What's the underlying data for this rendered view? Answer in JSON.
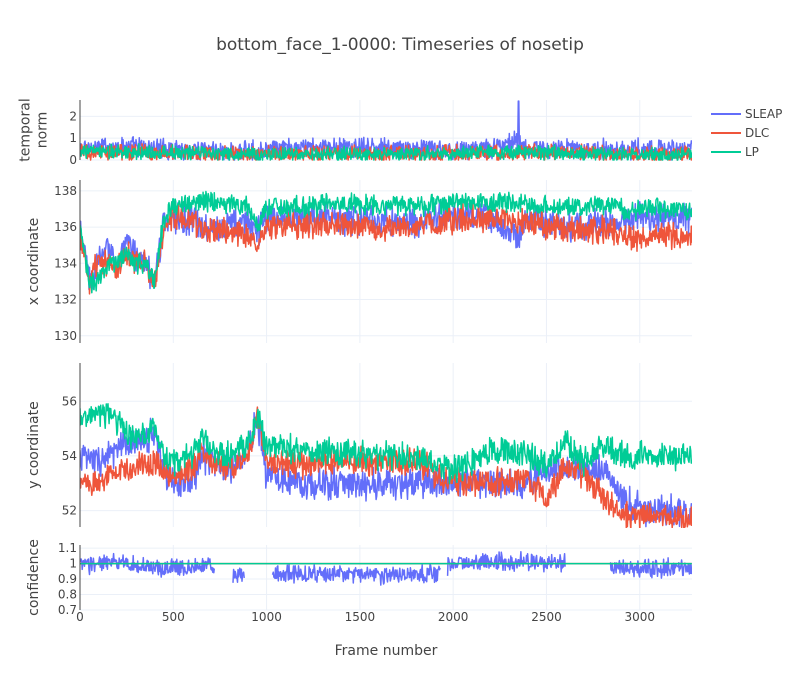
{
  "chart_data": {
    "type": "line",
    "title": "bottom_face_1-0000: Timeseries of nosetip",
    "xlabel": "Frame number",
    "xlim": [
      0,
      3280
    ],
    "x_ticks": [
      0,
      500,
      1000,
      1500,
      2000,
      2500,
      3000
    ],
    "x_tick_labels": [
      "0",
      "500",
      "1000",
      "1500",
      "2000",
      "2500",
      "3000"
    ],
    "series_styles": [
      {
        "name": "SLEAP",
        "color": "#636efa"
      },
      {
        "name": "DLC",
        "color": "#ef553b"
      },
      {
        "name": "LP",
        "color": "#00cc96"
      }
    ],
    "panels": [
      {
        "key": "temporal_norm",
        "ylabel_lines": [
          "temporal",
          "norm"
        ],
        "ylim": [
          0,
          2.75
        ],
        "y_ticks": [
          0,
          1,
          2
        ],
        "y_tick_labels": [
          "0",
          "1",
          "2"
        ],
        "series": [
          {
            "name": "SLEAP",
            "x": [
              0,
              100,
              200,
              300,
              400,
              500,
              600,
              700,
              800,
              900,
              1000,
              1200,
              1400,
              1600,
              1800,
              2000,
              2200,
              2350,
              2400,
              2600,
              2800,
              3000,
              3280
            ],
            "values": [
              0.5,
              0.6,
              0.6,
              0.6,
              0.55,
              0.5,
              0.5,
              0.45,
              0.4,
              0.4,
              0.45,
              0.55,
              0.55,
              0.55,
              0.5,
              0.45,
              0.55,
              0.9,
              0.5,
              0.5,
              0.5,
              0.5,
              0.5
            ],
            "amp": 0.55,
            "spike": 2.7,
            "spike_x": 2350
          },
          {
            "name": "DLC",
            "x": [
              0,
              500,
              1000,
              1500,
              2000,
              2500,
              3000,
              3280
            ],
            "values": [
              0.35,
              0.35,
              0.25,
              0.3,
              0.3,
              0.35,
              0.25,
              0.25
            ],
            "amp": 0.45
          },
          {
            "name": "LP",
            "x": [
              0,
              500,
              1000,
              1500,
              2000,
              2500,
              3000,
              3280
            ],
            "values": [
              0.4,
              0.35,
              0.25,
              0.25,
              0.3,
              0.35,
              0.25,
              0.25
            ],
            "amp": 0.4
          }
        ]
      },
      {
        "key": "x_coordinate",
        "ylabel_lines": [
          "x coordinate"
        ],
        "ylim": [
          129.6,
          138.6
        ],
        "y_ticks": [
          130,
          132,
          134,
          136,
          138
        ],
        "y_tick_labels": [
          "130",
          "132",
          "134",
          "136",
          "138"
        ],
        "series": [
          {
            "name": "SLEAP",
            "x": [
              0,
              50,
              100,
              150,
              200,
              250,
              300,
              350,
              400,
              450,
              500,
              600,
              700,
              800,
              900,
              950,
              1000,
              1200,
              1400,
              1600,
              1800,
              2000,
              2200,
              2350,
              2400,
              2600,
              2800,
              2900,
              3000,
              3280
            ],
            "values": [
              136,
              133,
              134,
              135,
              134,
              135,
              134.5,
              134,
              133,
              136.5,
              136.5,
              136.3,
              136,
              136.2,
              136.3,
              135.8,
              136.5,
              136.5,
              136.5,
              136.3,
              136.3,
              136.6,
              136.5,
              135.5,
              136.5,
              136,
              136.2,
              136.3,
              136.5,
              136.5
            ],
            "amp": 1.0
          },
          {
            "name": "DLC",
            "x": [
              0,
              50,
              100,
              150,
              200,
              250,
              300,
              350,
              400,
              450,
              500,
              600,
              700,
              800,
              900,
              950,
              1000,
              1200,
              1400,
              1600,
              1800,
              2000,
              2200,
              2400,
              2600,
              2800,
              2900,
              3000,
              3280
            ],
            "values": [
              135.5,
              133,
              134,
              134,
              133.5,
              134.5,
              134,
              134,
              133,
              136,
              136.5,
              136.3,
              135.8,
              135.8,
              135.5,
              135,
              136,
              136.1,
              136.1,
              136,
              136,
              136.4,
              136.5,
              136.3,
              135.8,
              135.9,
              135.5,
              135.5,
              135.5
            ],
            "amp": 0.9
          },
          {
            "name": "LP",
            "x": [
              0,
              50,
              100,
              150,
              200,
              250,
              300,
              350,
              400,
              450,
              500,
              600,
              700,
              800,
              900,
              950,
              1000,
              1200,
              1400,
              1600,
              1800,
              2000,
              2200,
              2400,
              2600,
              2800,
              2900,
              3000,
              3280
            ],
            "values": [
              136,
              133,
              133,
              134,
              134,
              134.5,
              134,
              134,
              133,
              136.5,
              137.2,
              137.3,
              137.4,
              137.3,
              137.1,
              136.2,
              137,
              137.2,
              137.3,
              137.2,
              137.2,
              137.4,
              137.4,
              137.3,
              137,
              137.2,
              137,
              137,
              137
            ],
            "amp": 0.7
          }
        ]
      },
      {
        "key": "y_coordinate",
        "ylabel_lines": [
          "y coordinate"
        ],
        "ylim": [
          51.4,
          57.4
        ],
        "y_ticks": [
          52,
          54,
          56
        ],
        "y_tick_labels": [
          "52",
          "54",
          "56"
        ],
        "series": [
          {
            "name": "SLEAP",
            "x": [
              0,
              100,
              200,
              300,
              400,
              450,
              500,
              600,
              650,
              700,
              800,
              900,
              950,
              1000,
              1100,
              1200,
              1400,
              1600,
              1800,
              1950,
              2000,
              2200,
              2400,
              2500,
              2600,
              2800,
              2900,
              3000,
              3280
            ],
            "values": [
              54,
              53.8,
              54.2,
              54.5,
              54.8,
              53.5,
              53,
              53,
              54,
              53.8,
              53.5,
              54,
              55.5,
              53.3,
              53.2,
              53,
              53,
              53,
              53,
              53,
              53,
              53,
              53,
              53.5,
              53.5,
              53.5,
              52.5,
              52,
              52
            ],
            "amp": 0.7
          },
          {
            "name": "DLC",
            "x": [
              0,
              100,
              200,
              300,
              400,
              450,
              500,
              600,
              650,
              700,
              800,
              900,
              950,
              1000,
              1100,
              1200,
              1400,
              1600,
              1800,
              2000,
              2200,
              2400,
              2500,
              2600,
              2700,
              2800,
              2900,
              3000,
              3280
            ],
            "values": [
              53,
              53,
              53.5,
              53.5,
              53.8,
              53.5,
              53.3,
              53.5,
              54.3,
              53.8,
              53.6,
              54,
              55.5,
              53.7,
              53.7,
              53.7,
              53.8,
              53.8,
              53.8,
              53,
              53,
              53.2,
              52.5,
              53.5,
              53.3,
              52.6,
              51.8,
              51.8,
              51.7
            ],
            "amp": 0.6
          },
          {
            "name": "LP",
            "x": [
              0,
              100,
              200,
              300,
              400,
              450,
              500,
              600,
              650,
              700,
              800,
              900,
              950,
              1000,
              1200,
              1400,
              1600,
              1800,
              2000,
              2100,
              2200,
              2400,
              2500,
              2600,
              2700,
              2800,
              2900,
              3000,
              3280
            ],
            "values": [
              55.5,
              55.5,
              55.3,
              54.5,
              55,
              54,
              53.8,
              54,
              54.8,
              54.2,
              54,
              54.5,
              55.5,
              54.4,
              54.2,
              54.1,
              54,
              53.9,
              53.5,
              53.8,
              54.2,
              54,
              53.6,
              54.5,
              53.8,
              54.4,
              54.1,
              54,
              54
            ],
            "amp": 0.6
          }
        ]
      },
      {
        "key": "confidence",
        "ylabel_lines": [
          "confidence"
        ],
        "ylim": [
          0.7,
          1.12
        ],
        "y_ticks": [
          0.7,
          0.8,
          0.9,
          1,
          1.1
        ],
        "y_tick_labels": [
          "0.7",
          "0.8",
          "0.9",
          "1",
          "1.1"
        ],
        "series": [
          {
            "name": "SLEAP",
            "segments": [
              [
                0,
                720
              ],
              [
                820,
                880
              ],
              [
                1030,
                1930
              ],
              [
                1970,
                2600
              ],
              [
                2840,
                3280
              ]
            ],
            "x": [
              0,
              200,
              400,
              500,
              700,
              800,
              900,
              1000,
              1200,
              1400,
              1600,
              1800,
              1900,
              2000,
              2200,
              2400,
              2500,
              2600,
              2800,
              2900,
              3100,
              3280
            ],
            "values": [
              0.99,
              1.01,
              0.97,
              0.97,
              0.99,
              0.92,
              0.93,
              0.93,
              0.93,
              0.93,
              0.93,
              0.93,
              0.93,
              1.0,
              1.01,
              1.01,
              1.0,
              1.0,
              0.98,
              0.98,
              0.97,
              0.97
            ],
            "amp": 0.07
          },
          {
            "name": "DLC",
            "x": [
              0,
              3280
            ],
            "values": [
              1.0,
              1.0
            ],
            "amp": 0
          },
          {
            "name": "LP",
            "x": [
              0,
              3280
            ],
            "values": [
              1.0,
              1.0
            ],
            "amp": 0
          }
        ]
      }
    ],
    "legend": {
      "position": "top-right",
      "items": [
        "SLEAP",
        "DLC",
        "LP"
      ]
    },
    "grid": true
  }
}
